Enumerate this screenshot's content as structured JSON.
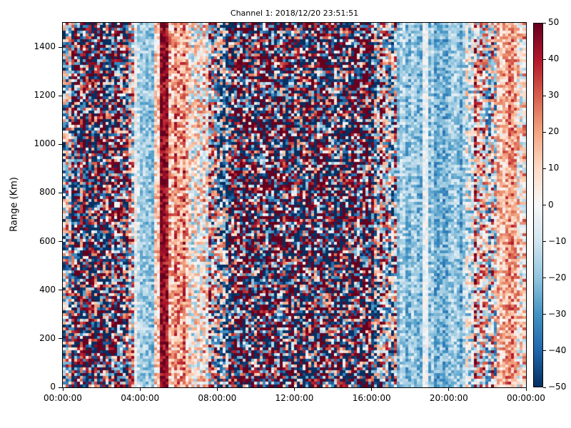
{
  "figure": {
    "title": "Channel 1: 2018/12/20 23:51:51",
    "background_color": "#ffffff",
    "text_color": "#000000"
  },
  "axes": {
    "ylabel": "Range (Km)",
    "y_range_km": [
      0,
      1500
    ],
    "x_range_hours": [
      0,
      24
    ],
    "yticks": [
      {
        "value": 0,
        "label": "0"
      },
      {
        "value": 200,
        "label": "200"
      },
      {
        "value": 400,
        "label": "400"
      },
      {
        "value": 600,
        "label": "600"
      },
      {
        "value": 800,
        "label": "800"
      },
      {
        "value": 1000,
        "label": "1000"
      },
      {
        "value": 1200,
        "label": "1200"
      },
      {
        "value": 1400,
        "label": "1400"
      }
    ],
    "xticks": [
      {
        "hour": 0,
        "label": "00:00:00"
      },
      {
        "hour": 4,
        "label": "04:00:00"
      },
      {
        "hour": 8,
        "label": "08:00:00"
      },
      {
        "hour": 12,
        "label": "12:00:00"
      },
      {
        "hour": 16,
        "label": "16:00:00"
      },
      {
        "hour": 20,
        "label": "20:00:00"
      },
      {
        "hour": 24,
        "label": "00:00:00"
      }
    ]
  },
  "colorbar": {
    "min": -50,
    "max": 50,
    "colormap": "RdBu_r",
    "stops": [
      "#053061",
      "#2166ac",
      "#4393c3",
      "#92c5de",
      "#d1e5f0",
      "#f7f7f7",
      "#fddbc7",
      "#f4a582",
      "#d6604d",
      "#b2182b",
      "#67001f"
    ],
    "ticks": [
      {
        "value": 50,
        "label": "50"
      },
      {
        "value": 40,
        "label": "40"
      },
      {
        "value": 30,
        "label": "30"
      },
      {
        "value": 20,
        "label": "20"
      },
      {
        "value": 10,
        "label": "10"
      },
      {
        "value": 0,
        "label": "0"
      },
      {
        "value": -10,
        "label": "−10"
      },
      {
        "value": -20,
        "label": "−20"
      },
      {
        "value": -30,
        "label": "−30"
      },
      {
        "value": -40,
        "label": "−40"
      },
      {
        "value": -50,
        "label": "−50"
      }
    ]
  },
  "chart_data": {
    "type": "heatmap",
    "title": "Channel 1: 2018/12/20 23:51:51",
    "xlabel": "",
    "ylabel": "Range (Km)",
    "x_axis": {
      "unit": "time of day",
      "range_hours": [
        0,
        24
      ],
      "tick_labels": [
        "00:00:00",
        "04:00:00",
        "08:00:00",
        "12:00:00",
        "16:00:00",
        "20:00:00",
        "00:00:00"
      ]
    },
    "y_axis": {
      "unit": "Km",
      "range": [
        0,
        1500
      ]
    },
    "value_range": [
      -50,
      50
    ],
    "colormap": "RdBu_r",
    "grid": {
      "cols": 162,
      "rows": 128
    },
    "noise_seed": 1234,
    "description": "Speckled diverging-noise heatmap; values are random per cell but organized in vertical time bands: dense saturated red/blue noise 00:00-03:45 and 07:30-17:20, a pale-blue low band ~04:00-04:45, a saturated dark-red band ~05:00-05:25 fading through salmon to ~06:30, pale-blue quiet bands 17:25-18:35 and 19:00-20:55 separated by a near-white strip, mixed noise 21:15-22:30, and a salmon positive band 22:30-23:35.",
    "bands": [
      {
        "t0": 0.0,
        "t1": 0.45,
        "bias": -2,
        "spread": 45,
        "col_var": 22,
        "shape": 0.8
      },
      {
        "t0": 0.45,
        "t1": 1.15,
        "bias": 2,
        "spread": 70,
        "col_var": 25,
        "shape": 0.65
      },
      {
        "t0": 1.15,
        "t1": 2.4,
        "bias": -10,
        "spread": 72,
        "col_var": 28,
        "shape": 0.6
      },
      {
        "t0": 2.4,
        "t1": 3.45,
        "bias": 4,
        "spread": 70,
        "col_var": 28,
        "shape": 0.65
      },
      {
        "t0": 3.45,
        "t1": 3.77,
        "bias": 2,
        "spread": 45,
        "col_var": 20,
        "shape": 0.8
      },
      {
        "t0": 3.77,
        "t1": 4.02,
        "bias": -7,
        "spread": 14,
        "col_var": 8,
        "shape": 1
      },
      {
        "t0": 4.02,
        "t1": 4.72,
        "bias": -19,
        "spread": 11,
        "col_var": 6,
        "shape": 1
      },
      {
        "t0": 4.72,
        "t1": 4.98,
        "bias": 6,
        "spread": 16,
        "col_var": 8,
        "shape": 1
      },
      {
        "t0": 4.98,
        "t1": 5.42,
        "bias": 45,
        "spread": 11,
        "col_var": 4,
        "shape": 1
      },
      {
        "t0": 5.42,
        "t1": 6.45,
        "bias": 21,
        "spread": 20,
        "col_var": 8,
        "shape": 1
      },
      {
        "t0": 6.45,
        "t1": 7.6,
        "bias": 7,
        "spread": 26,
        "col_var": 12,
        "shape": 0.9
      },
      {
        "t0": 7.6,
        "t1": 8.6,
        "bias": -2,
        "spread": 50,
        "col_var": 22,
        "shape": 0.75
      },
      {
        "t0": 8.6,
        "t1": 16.1,
        "bias": 0,
        "spread": 72,
        "col_var": 26,
        "shape": 0.6
      },
      {
        "t0": 16.1,
        "t1": 17.4,
        "bias": -2,
        "spread": 48,
        "col_var": 26,
        "shape": 0.8
      },
      {
        "t0": 17.4,
        "t1": 18.62,
        "bias": -17,
        "spread": 12,
        "col_var": 6,
        "shape": 1
      },
      {
        "t0": 18.62,
        "t1": 18.98,
        "bias": -5,
        "spread": 9,
        "col_var": 4,
        "shape": 1
      },
      {
        "t0": 18.98,
        "t1": 20.9,
        "bias": -20,
        "spread": 12,
        "col_var": 7,
        "shape": 1
      },
      {
        "t0": 20.9,
        "t1": 21.3,
        "bias": -8,
        "spread": 25,
        "col_var": 12,
        "shape": 1
      },
      {
        "t0": 21.3,
        "t1": 22.55,
        "bias": 4,
        "spread": 38,
        "col_var": 18,
        "shape": 0.85
      },
      {
        "t0": 22.55,
        "t1": 23.6,
        "bias": 17,
        "spread": 17,
        "col_var": 8,
        "shape": 1
      },
      {
        "t0": 23.6,
        "t1": 24.01,
        "bias": 2,
        "spread": 26,
        "col_var": 14,
        "shape": 1
      }
    ]
  }
}
